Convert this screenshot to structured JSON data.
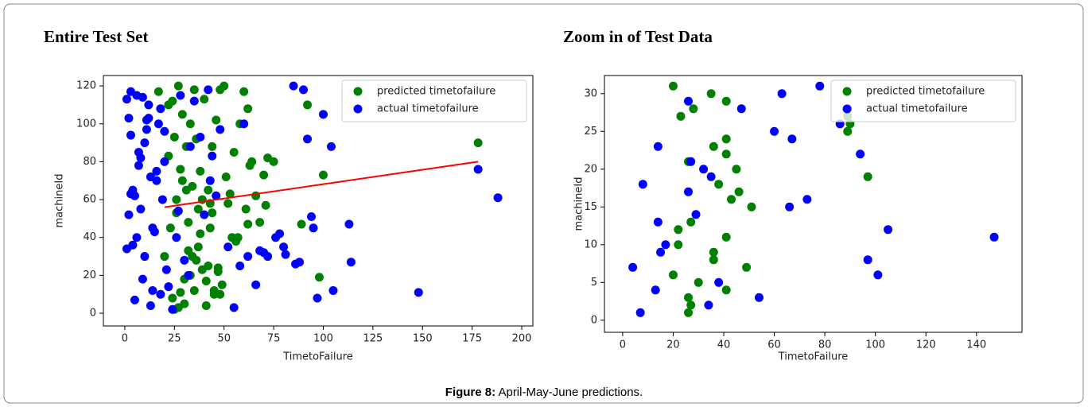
{
  "chart_data": [
    {
      "type": "scatter",
      "title": "Entire Test Set",
      "xlabel": "TimetoFailure",
      "ylabel": "machineId",
      "xlim": [
        -10.8,
        205.6
      ],
      "ylim": [
        -6.7,
        125.5
      ],
      "xticks": [
        0,
        25,
        50,
        75,
        100,
        125,
        150,
        175,
        200
      ],
      "yticks": [
        0,
        20,
        40,
        60,
        80,
        100,
        120
      ],
      "legend": "upper right",
      "series": [
        {
          "name": "predicted timetofailure",
          "color": "#008000",
          "x": [
            17,
            22,
            24,
            25,
            27,
            29,
            31,
            33,
            35,
            36,
            38,
            40,
            42,
            44,
            46,
            48,
            50,
            52,
            55,
            57,
            60,
            62,
            64,
            66,
            70,
            72,
            75,
            20,
            23,
            26,
            28,
            30,
            32,
            34,
            37,
            39,
            41,
            43,
            45,
            47,
            49,
            51,
            53,
            56,
            58,
            61,
            63,
            68,
            71,
            24,
            27,
            30,
            33,
            36,
            39,
            42,
            45,
            48,
            22,
            26,
            29,
            32,
            35,
            38,
            41,
            44,
            47,
            54,
            62,
            178,
            100,
            92,
            89,
            98,
            25,
            31,
            37,
            43,
            28,
            34
          ],
          "values": [
            117,
            83,
            112,
            93,
            120,
            105,
            88,
            100,
            118,
            92,
            75,
            113,
            65,
            88,
            102,
            118,
            120,
            58,
            85,
            40,
            117,
            108,
            80,
            62,
            73,
            82,
            80,
            30,
            45,
            53,
            76,
            5,
            48,
            67,
            35,
            60,
            4,
            58,
            10,
            22,
            15,
            72,
            63,
            38,
            100,
            55,
            78,
            48,
            57,
            8,
            3,
            18,
            20,
            28,
            23,
            25,
            12,
            10,
            110,
            60,
            70,
            33,
            12,
            42,
            17,
            53,
            24,
            40,
            47,
            90,
            73,
            110,
            47,
            19,
            2,
            65,
            55,
            45,
            11,
            30
          ]
        },
        {
          "name": "actual timetofailure",
          "color": "#0000ff",
          "x": [
            1,
            2,
            3,
            3,
            4,
            5,
            6,
            7,
            8,
            9,
            10,
            11,
            12,
            13,
            14,
            15,
            16,
            17,
            18,
            19,
            20,
            21,
            1,
            2,
            4,
            6,
            8,
            10,
            12,
            14,
            16,
            18,
            20,
            22,
            24,
            26,
            28,
            30,
            32,
            35,
            38,
            40,
            42,
            44,
            46,
            48,
            55,
            58,
            60,
            62,
            66,
            68,
            70,
            72,
            76,
            78,
            80,
            81,
            85,
            86,
            88,
            90,
            92,
            94,
            95,
            97,
            100,
            104,
            105,
            113,
            114,
            148,
            178,
            188,
            5,
            3,
            7,
            9,
            11,
            13,
            27,
            33,
            43,
            52
          ],
          "values": [
            113,
            103,
            94,
            63,
            36,
            7,
            115,
            85,
            55,
            18,
            90,
            97,
            110,
            72,
            12,
            43,
            70,
            100,
            108,
            60,
            80,
            23,
            34,
            52,
            65,
            40,
            82,
            30,
            103,
            45,
            75,
            10,
            96,
            14,
            2,
            40,
            115,
            28,
            20,
            112,
            93,
            52,
            118,
            83,
            62,
            97,
            3,
            25,
            100,
            30,
            15,
            33,
            32,
            30,
            40,
            42,
            35,
            31,
            120,
            26,
            27,
            118,
            92,
            51,
            45,
            8,
            105,
            88,
            12,
            47,
            27,
            11,
            76,
            61,
            62,
            117,
            78,
            114,
            102,
            4,
            54,
            88,
            70,
            35
          ]
        }
      ],
      "trend_line": {
        "x": [
          20,
          178
        ],
        "values": [
          56,
          80
        ],
        "color": "#ff0000"
      }
    },
    {
      "type": "scatter",
      "title": "Zoom in of Test Data",
      "xlabel": "TimetoFailure",
      "ylabel": "machineId",
      "xlim": [
        -7.2,
        158
      ],
      "ylim": [
        -1.6,
        32.4
      ],
      "xticks": [
        0,
        20,
        40,
        60,
        80,
        100,
        120,
        140
      ],
      "yticks": [
        0,
        5,
        10,
        15,
        20,
        25,
        30
      ],
      "legend": "upper right",
      "series": [
        {
          "name": "predicted timetofailure",
          "color": "#008000",
          "x": [
            20,
            23,
            26,
            28,
            35,
            41,
            41,
            41,
            36,
            38,
            45,
            46,
            43,
            51,
            22,
            22,
            27,
            36,
            36,
            41,
            20,
            30,
            26,
            27,
            26,
            41,
            49,
            97,
            89,
            90,
            89
          ],
          "values": [
            31,
            27,
            21,
            28,
            30,
            29,
            24,
            22,
            23,
            18,
            20,
            17,
            16,
            15,
            12,
            10,
            13,
            9,
            8,
            11,
            6,
            5,
            3,
            2,
            1,
            4,
            7,
            19,
            25,
            26,
            27
          ]
        },
        {
          "name": "actual timetofailure",
          "color": "#0000ff",
          "x": [
            4,
            7,
            8,
            14,
            14,
            15,
            17,
            13,
            26,
            26,
            27,
            32,
            35,
            29,
            38,
            34,
            54,
            47,
            60,
            63,
            67,
            66,
            73,
            78,
            86,
            89,
            94,
            97,
            101,
            105,
            147
          ],
          "values": [
            7,
            1,
            18,
            23,
            13,
            9,
            10,
            4,
            29,
            17,
            21,
            20,
            19,
            14,
            5,
            2,
            3,
            28,
            25,
            30,
            24,
            15,
            16,
            31,
            26,
            28,
            22,
            8,
            6,
            12,
            11
          ]
        }
      ]
    }
  ],
  "caption": {
    "label": "Figure 8:",
    "text": "April-May-June predictions."
  }
}
